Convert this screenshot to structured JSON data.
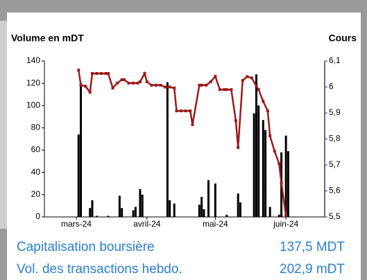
{
  "chart_data": {
    "type": "bar-line",
    "ylabel": "Volume en mDT",
    "y2label": "Cours",
    "xlim": [
      -14,
      109
    ],
    "xticks": [
      {
        "value": 0,
        "label": "mars-24"
      },
      {
        "value": 31,
        "label": "avril-24"
      },
      {
        "value": 61,
        "label": "mai-24"
      },
      {
        "value": 92,
        "label": "juin-24"
      }
    ],
    "ylim": [
      0,
      140
    ],
    "yticks": [
      0,
      20,
      40,
      60,
      80,
      100,
      120,
      140
    ],
    "y2lim": [
      5.5,
      6.1
    ],
    "y2ticks": [
      {
        "value": 5.5,
        "label": "5,5"
      },
      {
        "value": 5.6,
        "label": "5,6"
      },
      {
        "value": 5.7,
        "label": "5,7"
      },
      {
        "value": 5.8,
        "label": "5,8"
      },
      {
        "value": 5.9,
        "label": "5,9"
      },
      6,
      {
        "value": 6.1,
        "label": "6,1"
      }
    ],
    "series": [
      {
        "type": "bar",
        "color": "#000000",
        "x": [
          1,
          2,
          6,
          7,
          9,
          14,
          19,
          20,
          25,
          26,
          28,
          29,
          40,
          41,
          43,
          54,
          55,
          56,
          58,
          61,
          66,
          71,
          72,
          78,
          79,
          80,
          82,
          83,
          85,
          89,
          90,
          92,
          93
        ],
        "values": [
          74,
          120,
          8,
          15,
          1,
          1,
          19,
          8,
          6,
          9,
          25,
          20,
          121,
          15,
          12,
          11,
          18,
          7,
          33,
          30,
          2,
          21,
          13,
          93,
          128,
          100,
          87,
          78,
          9,
          2,
          58,
          73,
          59
        ]
      },
      {
        "type": "line",
        "axis": "y2",
        "color": "#9b1b1b",
        "x": [
          1,
          2,
          4,
          6,
          7,
          9,
          11,
          13,
          14,
          16,
          18,
          20,
          21,
          23,
          25,
          27,
          28,
          30,
          31,
          33,
          35,
          37,
          39,
          41,
          43,
          44,
          46,
          48,
          50,
          51,
          54,
          55,
          57,
          59,
          61,
          63,
          65,
          66,
          68,
          70,
          71,
          73,
          75,
          77,
          79,
          80,
          82,
          84,
          85,
          87,
          89,
          90,
          92
        ],
        "values": [
          6.065,
          6.007,
          6.003,
          5.98,
          6.052,
          6.052,
          6.052,
          6.052,
          6.052,
          5.996,
          6.015,
          6.028,
          6.028,
          6.015,
          6.015,
          6.015,
          6.02,
          6.052,
          6.02,
          6.007,
          6.007,
          6.007,
          6.0,
          6.0,
          5.996,
          5.908,
          5.908,
          5.908,
          5.908,
          5.855,
          6.007,
          6.007,
          6.007,
          6.02,
          6.041,
          5.99,
          5.99,
          5.99,
          5.99,
          5.87,
          5.767,
          6.025,
          6.04,
          6.035,
          6.003,
          5.99,
          5.945,
          5.908,
          5.812,
          5.753,
          5.705,
          5.63,
          5.505
        ]
      }
    ]
  },
  "info": [
    {
      "label": "Capitalisation boursière",
      "value": "137,5 MDT"
    },
    {
      "label": "Vol. des transactions hebdo.",
      "value": "202,9 mDT"
    }
  ]
}
